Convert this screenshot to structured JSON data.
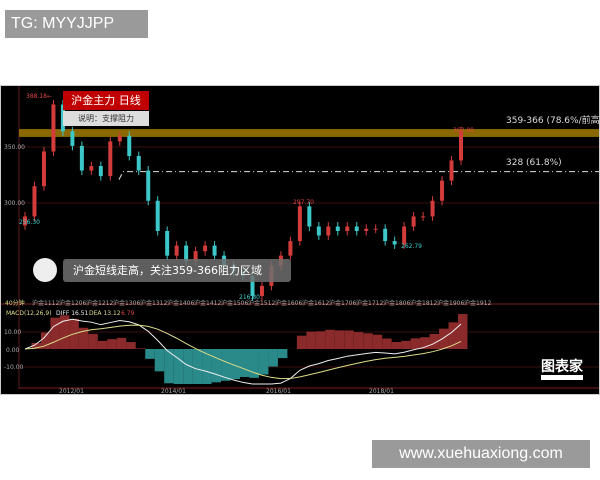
{
  "watermark": "TG: MYYJJPP",
  "site": "www.xuehuaxiong.com",
  "title": "沪金主力 日线",
  "note": "说明：支撑阻力",
  "callout": "沪金短线走高，关注359-366阻力区域",
  "logo": "图表家",
  "colors": {
    "up": "#d43c3c",
    "down": "#3cc8c8",
    "band": "#8a6a00",
    "bg": "#000000",
    "title_bg": "#c00000"
  },
  "chart_data": {
    "type": "candlestick",
    "ylim": [
      200,
      400
    ],
    "yticks": [
      "350.00",
      "300.00"
    ],
    "annotations": {
      "high": "388.18←",
      "low": "216.80",
      "start": "256.30",
      "mid_high": "297.70",
      "mid_low": "262.79",
      "last_high": "363.90"
    },
    "levels": [
      {
        "label": "359-366 (78.6%/前高)",
        "low": 359,
        "high": 366
      },
      {
        "label": "328 (61.8%)",
        "value": 328
      }
    ],
    "closes": [
      288,
      315,
      346,
      388,
      364,
      351,
      329,
      333,
      324,
      355,
      360,
      342,
      329,
      302,
      275,
      253,
      262,
      248,
      257,
      262,
      253,
      244,
      239,
      235,
      217,
      226,
      244,
      253,
      266,
      297,
      279,
      271,
      279,
      275,
      279,
      275,
      277,
      277,
      266,
      263,
      279,
      288,
      288,
      302,
      320,
      338,
      364
    ],
    "contracts": [
      "40分钟",
      "沪金1112",
      "沪金1206",
      "沪金1212",
      "沪金1306",
      "沪金1312",
      "沪金1406",
      "沪金1412",
      "沪金1506",
      "沪金1512",
      "沪金1606",
      "沪金1612",
      "沪金1706",
      "沪金1712",
      "沪金1806",
      "沪金1812",
      "沪金1906",
      "沪金1912"
    ],
    "macd": {
      "legend": "MACD(12,26,9)",
      "diff": "DIFF 16.51",
      "dea": "DEA 13.12",
      "macd": "6.79",
      "yticks": [
        "10.00",
        "0.00",
        "-10.00"
      ],
      "ylim": [
        -20,
        22
      ]
    },
    "xticks": [
      "2012/01",
      "2014/01",
      "2016/01",
      "2018/01"
    ]
  }
}
